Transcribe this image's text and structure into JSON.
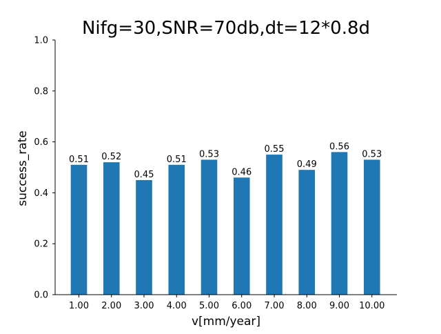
{
  "chart_data": {
    "type": "bar",
    "title": "Nifg=30,SNR=70db,dt=12*0.8d",
    "xlabel": "v[mm/year]",
    "ylabel": "success_rate",
    "categories": [
      "1.00",
      "2.00",
      "3.00",
      "4.00",
      "5.00",
      "6.00",
      "7.00",
      "8.00",
      "9.00",
      "10.00"
    ],
    "values": [
      0.51,
      0.52,
      0.45,
      0.51,
      0.53,
      0.46,
      0.55,
      0.49,
      0.56,
      0.53
    ],
    "value_labels": [
      "0.51",
      "0.52",
      "0.45",
      "0.51",
      "0.53",
      "0.46",
      "0.55",
      "0.49",
      "0.56",
      "0.53"
    ],
    "ylim": [
      0,
      1.0
    ],
    "yticks": [
      0.0,
      0.2,
      0.4,
      0.6,
      0.8,
      1.0
    ],
    "ytick_labels": [
      "0.0",
      "0.2",
      "0.4",
      "0.6",
      "0.8",
      "1.0"
    ],
    "grid": false,
    "bar_color": "#1f77b4"
  }
}
